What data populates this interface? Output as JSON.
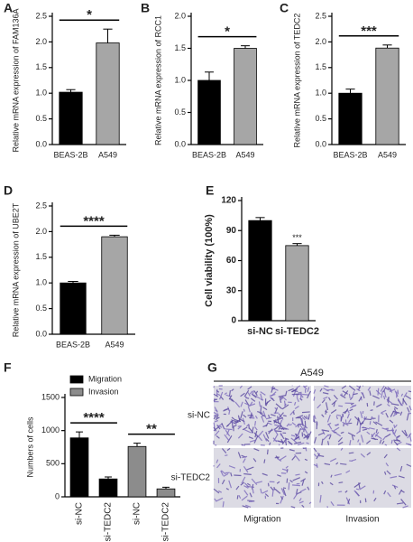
{
  "chart_data": [
    {
      "type": "bar",
      "panel": "A",
      "ylabel": "Relative mRNA expression of  FAM136A",
      "categories": [
        "BEAS-2B",
        "A549"
      ],
      "values": [
        1.02,
        1.98
      ],
      "errors": [
        0.05,
        0.27
      ],
      "colors": [
        "#000000",
        "#a6a6a6"
      ],
      "ylim": [
        0,
        2.5
      ],
      "yticks": [
        {
          "value": 0,
          "label": "0.0"
        },
        0.5,
        {
          "value": 1,
          "label": "1.0"
        },
        1.5,
        {
          "value": 2,
          "label": "2.0"
        },
        2.5
      ],
      "significance": [
        "*"
      ]
    },
    {
      "type": "bar",
      "panel": "B",
      "ylabel": "Relative mRNA expression of  RCC1",
      "categories": [
        "BEAS-2B",
        "A549"
      ],
      "values": [
        1.0,
        1.5
      ],
      "errors": [
        0.13,
        0.04
      ],
      "colors": [
        "#000000",
        "#a6a6a6"
      ],
      "ylim": [
        0,
        2
      ],
      "yticks": [
        {
          "value": 0,
          "label": "0.0"
        },
        0.5,
        {
          "value": 1,
          "label": "1.0"
        },
        1.5,
        {
          "value": 2,
          "label": "2.0"
        }
      ],
      "significance": [
        "*"
      ]
    },
    {
      "type": "bar",
      "panel": "C",
      "ylabel": "Relative mRNA expression of  TEDC2",
      "categories": [
        "BEAS-2B",
        "A549"
      ],
      "values": [
        1.0,
        1.88
      ],
      "errors": [
        0.08,
        0.06
      ],
      "colors": [
        "#000000",
        "#a6a6a6"
      ],
      "ylim": [
        0,
        2.5
      ],
      "yticks": [
        {
          "value": 0,
          "label": "0.0"
        },
        0.5,
        {
          "value": 1,
          "label": "1.0"
        },
        1.5,
        {
          "value": 2,
          "label": "2.0"
        },
        2.5
      ],
      "significance": [
        "***"
      ]
    },
    {
      "type": "bar",
      "panel": "D",
      "ylabel": "Relative mRNA expression of  UBE2T",
      "categories": [
        "BEAS-2B",
        "A549"
      ],
      "values": [
        1.0,
        1.9
      ],
      "errors": [
        0.03,
        0.03
      ],
      "colors": [
        "#000000",
        "#a6a6a6"
      ],
      "ylim": [
        0,
        2.5
      ],
      "yticks": [
        {
          "value": 0,
          "label": "0.0"
        },
        0.5,
        {
          "value": 1,
          "label": "1.0"
        },
        1.5,
        {
          "value": 2,
          "label": "2.0"
        },
        2.5
      ],
      "significance": [
        "****"
      ]
    },
    {
      "type": "bar",
      "panel": "E",
      "ylabel": "Cell viability (100%)",
      "categories": [
        "si-NC",
        "si-TEDC2"
      ],
      "values": [
        100,
        75
      ],
      "errors": [
        3,
        2
      ],
      "colors": [
        "#000000",
        "#a6a6a6"
      ],
      "ylim": [
        0,
        120
      ],
      "yticks": [
        0,
        30,
        60,
        90,
        120
      ],
      "significance": [
        "***"
      ]
    },
    {
      "type": "grouped-bar",
      "panel": "F",
      "ylabel": "Numbers of cells",
      "categories": [
        "si-NC",
        "si-TEDC2",
        "si-NC",
        "si-TEDC2"
      ],
      "series": [
        {
          "name": "Migration",
          "color": "#000000",
          "values": [
            890,
            270,
            null,
            null
          ],
          "errors": [
            90,
            30,
            null,
            null
          ]
        },
        {
          "name": "Invasion",
          "color": "#8c8c8c",
          "values": [
            null,
            null,
            760,
            120
          ],
          "errors": [
            null,
            null,
            50,
            25
          ]
        }
      ],
      "ylim": [
        0,
        1500
      ],
      "yticks": [
        0,
        500,
        1000,
        1500
      ],
      "significance": [
        "****",
        "**"
      ]
    },
    {
      "type": "micrograph",
      "panel": "G",
      "title": "A549",
      "rows": [
        "si-NC",
        "si-TEDC2"
      ],
      "columns": [
        "Migration",
        "Invasion"
      ]
    }
  ]
}
